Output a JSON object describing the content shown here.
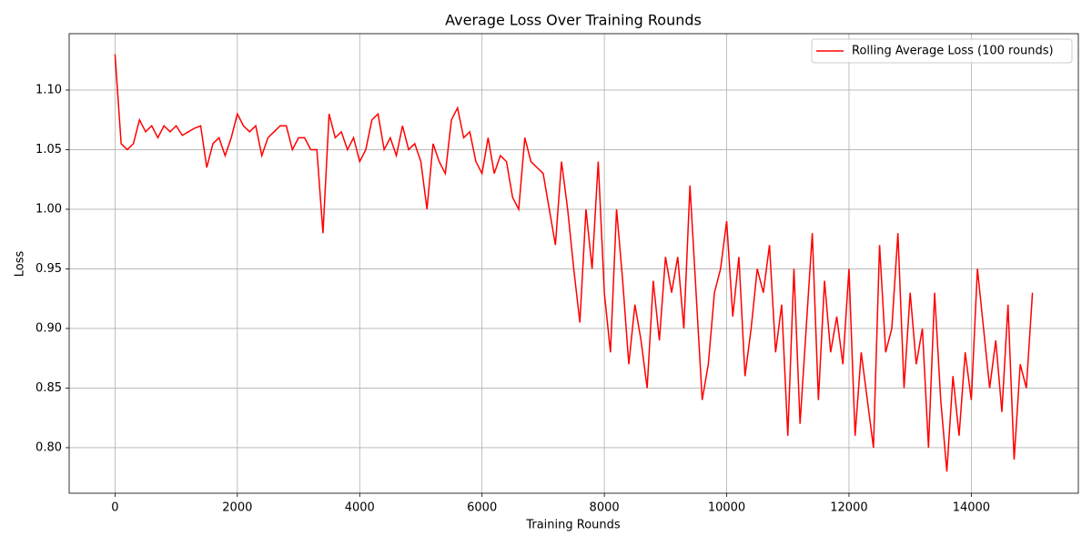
{
  "chart_data": {
    "type": "line",
    "title": "Average Loss Over Training Rounds",
    "x_label": "Training Rounds",
    "y_label": "Loss",
    "x": [
      0,
      100,
      200,
      300,
      400,
      500,
      600,
      700,
      800,
      900,
      1000,
      1100,
      1200,
      1300,
      1400,
      1500,
      1600,
      1700,
      1800,
      1900,
      2000,
      2100,
      2200,
      2300,
      2400,
      2500,
      2600,
      2700,
      2800,
      2900,
      3000,
      3100,
      3200,
      3300,
      3400,
      3500,
      3600,
      3700,
      3800,
      3900,
      4000,
      4100,
      4200,
      4300,
      4400,
      4500,
      4600,
      4700,
      4800,
      4900,
      5000,
      5100,
      5200,
      5300,
      5400,
      5500,
      5600,
      5700,
      5800,
      5900,
      6000,
      6100,
      6200,
      6300,
      6400,
      6500,
      6600,
      6700,
      6800,
      6900,
      7000,
      7100,
      7200,
      7300,
      7400,
      7500,
      7600,
      7700,
      7800,
      7900,
      8000,
      8100,
      8200,
      8300,
      8400,
      8500,
      8600,
      8700,
      8800,
      8900,
      9000,
      9100,
      9200,
      9300,
      9400,
      9500,
      9600,
      9700,
      9800,
      9900,
      10000,
      10100,
      10200,
      10300,
      10400,
      10500,
      10600,
      10700,
      10800,
      10900,
      11000,
      11100,
      11200,
      11300,
      11400,
      11500,
      11600,
      11700,
      11800,
      11900,
      12000,
      12100,
      12200,
      12300,
      12400,
      12500,
      12600,
      12700,
      12800,
      12900,
      13000,
      13100,
      13200,
      13300,
      13400,
      13500,
      13600,
      13700,
      13800,
      13900,
      14000,
      14100,
      14200,
      14300,
      14400,
      14500,
      14600,
      14700,
      14800,
      14900,
      15000
    ],
    "series": [
      {
        "name": "Rolling Average Loss (100 rounds)",
        "color": "#ff0000",
        "values": [
          1.13,
          1.055,
          1.05,
          1.055,
          1.075,
          1.065,
          1.07,
          1.06,
          1.07,
          1.065,
          1.07,
          1.062,
          1.065,
          1.068,
          1.07,
          1.035,
          1.055,
          1.06,
          1.045,
          1.06,
          1.08,
          1.07,
          1.065,
          1.07,
          1.045,
          1.06,
          1.065,
          1.07,
          1.07,
          1.05,
          1.06,
          1.06,
          1.05,
          1.05,
          0.98,
          1.08,
          1.06,
          1.065,
          1.05,
          1.06,
          1.04,
          1.05,
          1.075,
          1.08,
          1.05,
          1.06,
          1.045,
          1.07,
          1.05,
          1.055,
          1.04,
          1.0,
          1.055,
          1.04,
          1.03,
          1.075,
          1.085,
          1.06,
          1.065,
          1.04,
          1.03,
          1.06,
          1.03,
          1.045,
          1.04,
          1.01,
          1.0,
          1.06,
          1.04,
          1.035,
          1.03,
          1.0,
          0.97,
          1.04,
          1.0,
          0.95,
          0.905,
          1.0,
          0.95,
          1.04,
          0.93,
          0.88,
          1.0,
          0.94,
          0.87,
          0.92,
          0.89,
          0.85,
          0.94,
          0.89,
          0.96,
          0.93,
          0.96,
          0.9,
          1.02,
          0.93,
          0.84,
          0.87,
          0.93,
          0.95,
          0.99,
          0.91,
          0.96,
          0.86,
          0.9,
          0.95,
          0.93,
          0.97,
          0.88,
          0.92,
          0.81,
          0.95,
          0.82,
          0.9,
          0.98,
          0.84,
          0.94,
          0.88,
          0.91,
          0.87,
          0.95,
          0.81,
          0.88,
          0.84,
          0.8,
          0.97,
          0.88,
          0.9,
          0.98,
          0.85,
          0.93,
          0.87,
          0.9,
          0.8,
          0.93,
          0.84,
          0.78,
          0.86,
          0.81,
          0.88,
          0.84,
          0.95,
          0.9,
          0.85,
          0.89,
          0.83,
          0.92,
          0.79,
          0.87,
          0.85,
          0.93
        ]
      }
    ],
    "xlim": [
      -750,
      15750
    ],
    "xticks": [
      0,
      2000,
      4000,
      6000,
      8000,
      10000,
      12000,
      14000
    ],
    "ylim": [
      0.7618,
      1.1473
    ],
    "yticks": [
      {
        "value": 0.8,
        "label": "0.80"
      },
      0.85,
      {
        "value": 0.9,
        "label": "0.90"
      },
      0.95,
      {
        "value": 1.0,
        "label": "1.00"
      },
      1.05,
      {
        "value": 1.1,
        "label": "1.10"
      }
    ],
    "grid": true,
    "legend": "upper right"
  }
}
